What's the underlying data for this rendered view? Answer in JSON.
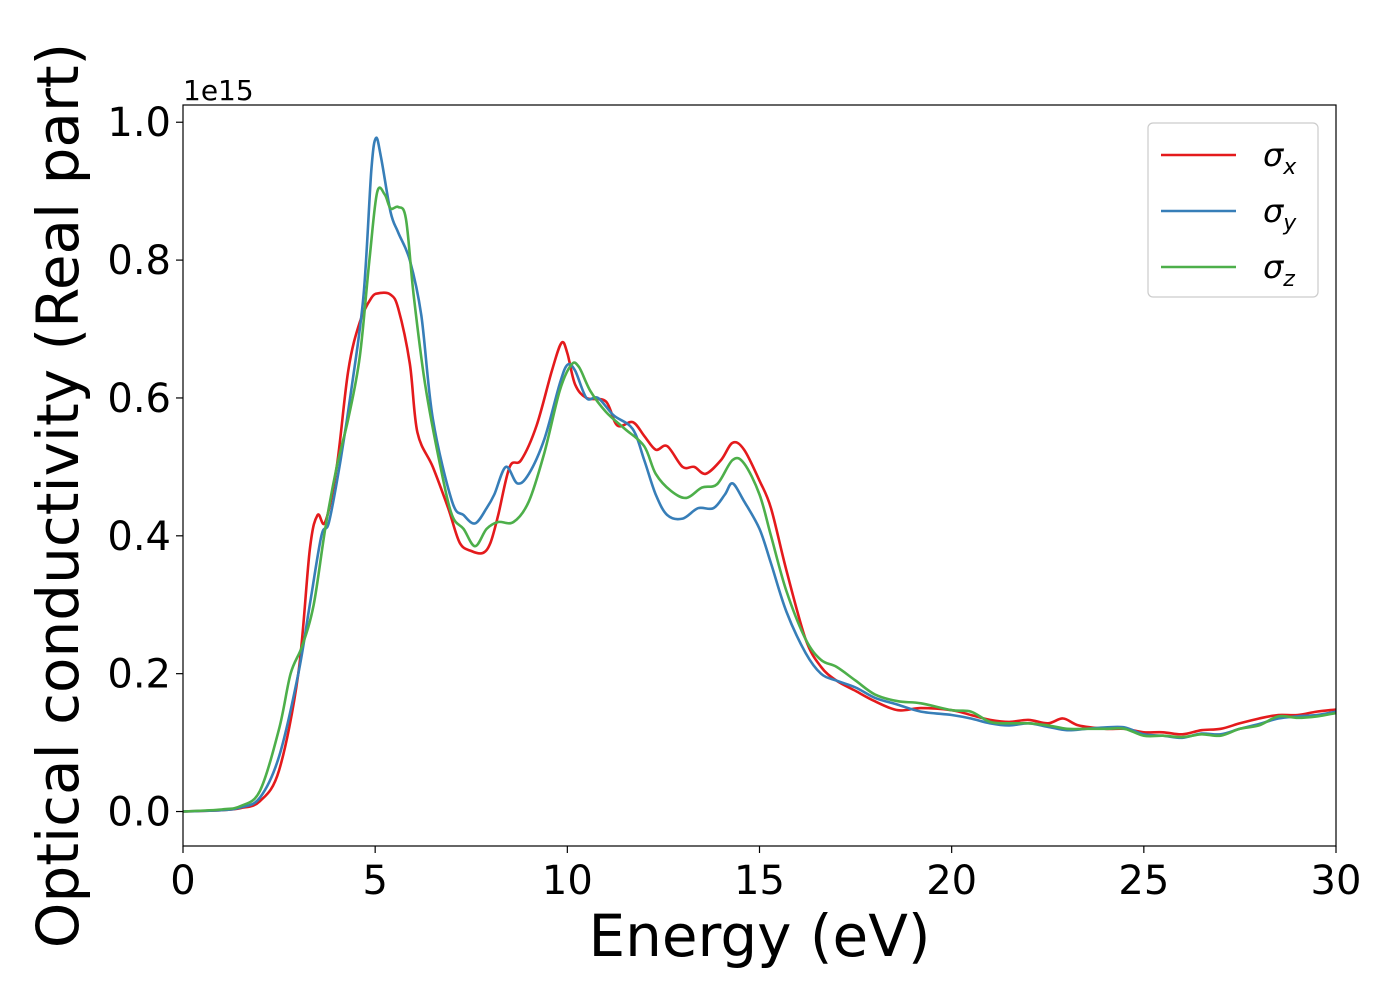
{
  "chart_data": {
    "type": "line",
    "xlabel": "Energy (eV)",
    "ylabel": "Optical conductivity (Real part)",
    "y_offset_label": "1e15",
    "xlim": [
      0,
      30
    ],
    "ylim": [
      -0.05,
      1.025
    ],
    "x_ticks": [
      0,
      5,
      10,
      15,
      20,
      25,
      30
    ],
    "x_tick_labels": [
      "0",
      "5",
      "10",
      "15",
      "20",
      "25",
      "30"
    ],
    "y_ticks": [
      0.0,
      0.2,
      0.4,
      0.6,
      0.8,
      1.0
    ],
    "y_tick_labels": [
      "0.0",
      "0.2",
      "0.4",
      "0.6",
      "0.8",
      "1.0"
    ],
    "grid": false,
    "legend_position": "top-right",
    "series": [
      {
        "name": "σx",
        "legend_base": "σ",
        "legend_sub": "x",
        "color": "#e41a1c",
        "points": [
          [
            0,
            0
          ],
          [
            1,
            0.002
          ],
          [
            1.5,
            0.005
          ],
          [
            2,
            0.015
          ],
          [
            2.5,
            0.06
          ],
          [
            3,
            0.2
          ],
          [
            3.3,
            0.38
          ],
          [
            3.5,
            0.43
          ],
          [
            3.7,
            0.42
          ],
          [
            4,
            0.5
          ],
          [
            4.3,
            0.64
          ],
          [
            4.6,
            0.71
          ],
          [
            4.9,
            0.745
          ],
          [
            5.1,
            0.752
          ],
          [
            5.4,
            0.75
          ],
          [
            5.6,
            0.73
          ],
          [
            5.9,
            0.65
          ],
          [
            6.1,
            0.55
          ],
          [
            6.5,
            0.5
          ],
          [
            6.9,
            0.44
          ],
          [
            7.2,
            0.39
          ],
          [
            7.5,
            0.378
          ],
          [
            7.8,
            0.375
          ],
          [
            8,
            0.39
          ],
          [
            8.2,
            0.43
          ],
          [
            8.5,
            0.5
          ],
          [
            8.8,
            0.51
          ],
          [
            9.2,
            0.56
          ],
          [
            9.6,
            0.64
          ],
          [
            9.85,
            0.68
          ],
          [
            10,
            0.665
          ],
          [
            10.2,
            0.62
          ],
          [
            10.5,
            0.6
          ],
          [
            11,
            0.595
          ],
          [
            11.3,
            0.56
          ],
          [
            11.7,
            0.565
          ],
          [
            12,
            0.545
          ],
          [
            12.3,
            0.525
          ],
          [
            12.6,
            0.53
          ],
          [
            13,
            0.5
          ],
          [
            13.3,
            0.5
          ],
          [
            13.6,
            0.49
          ],
          [
            14,
            0.51
          ],
          [
            14.3,
            0.535
          ],
          [
            14.6,
            0.525
          ],
          [
            15,
            0.48
          ],
          [
            15.3,
            0.44
          ],
          [
            15.7,
            0.35
          ],
          [
            16.2,
            0.25
          ],
          [
            16.6,
            0.21
          ],
          [
            17,
            0.19
          ],
          [
            17.5,
            0.175
          ],
          [
            18,
            0.16
          ],
          [
            18.6,
            0.147
          ],
          [
            19.2,
            0.15
          ],
          [
            20,
            0.147
          ],
          [
            20.5,
            0.14
          ],
          [
            21,
            0.133
          ],
          [
            21.5,
            0.13
          ],
          [
            22,
            0.133
          ],
          [
            22.5,
            0.128
          ],
          [
            22.9,
            0.135
          ],
          [
            23.3,
            0.125
          ],
          [
            24,
            0.12
          ],
          [
            24.5,
            0.12
          ],
          [
            25,
            0.115
          ],
          [
            25.5,
            0.115
          ],
          [
            26,
            0.112
          ],
          [
            26.5,
            0.118
          ],
          [
            27,
            0.12
          ],
          [
            27.5,
            0.128
          ],
          [
            28,
            0.135
          ],
          [
            28.5,
            0.14
          ],
          [
            29,
            0.14
          ],
          [
            29.5,
            0.145
          ],
          [
            30,
            0.148
          ]
        ]
      },
      {
        "name": "σy",
        "legend_base": "σ",
        "legend_sub": "y",
        "color": "#377eb8",
        "points": [
          [
            0,
            0
          ],
          [
            1,
            0.002
          ],
          [
            1.5,
            0.006
          ],
          [
            2,
            0.02
          ],
          [
            2.5,
            0.08
          ],
          [
            3,
            0.2
          ],
          [
            3.3,
            0.3
          ],
          [
            3.6,
            0.4
          ],
          [
            3.8,
            0.42
          ],
          [
            4.1,
            0.51
          ],
          [
            4.4,
            0.62
          ],
          [
            4.7,
            0.75
          ],
          [
            4.9,
            0.93
          ],
          [
            5.02,
            0.977
          ],
          [
            5.15,
            0.95
          ],
          [
            5.4,
            0.87
          ],
          [
            5.6,
            0.84
          ],
          [
            5.9,
            0.8
          ],
          [
            6.2,
            0.72
          ],
          [
            6.5,
            0.57
          ],
          [
            7,
            0.45
          ],
          [
            7.3,
            0.43
          ],
          [
            7.6,
            0.418
          ],
          [
            7.9,
            0.44
          ],
          [
            8.1,
            0.46
          ],
          [
            8.4,
            0.5
          ],
          [
            8.7,
            0.476
          ],
          [
            9,
            0.49
          ],
          [
            9.4,
            0.54
          ],
          [
            9.8,
            0.62
          ],
          [
            10,
            0.648
          ],
          [
            10.2,
            0.64
          ],
          [
            10.5,
            0.6
          ],
          [
            10.8,
            0.6
          ],
          [
            11.2,
            0.575
          ],
          [
            11.7,
            0.555
          ],
          [
            12,
            0.51
          ],
          [
            12.3,
            0.46
          ],
          [
            12.6,
            0.43
          ],
          [
            13,
            0.425
          ],
          [
            13.4,
            0.44
          ],
          [
            13.8,
            0.44
          ],
          [
            14.1,
            0.46
          ],
          [
            14.3,
            0.476
          ],
          [
            14.6,
            0.45
          ],
          [
            15,
            0.41
          ],
          [
            15.3,
            0.36
          ],
          [
            15.7,
            0.29
          ],
          [
            16.2,
            0.23
          ],
          [
            16.6,
            0.2
          ],
          [
            17,
            0.19
          ],
          [
            17.5,
            0.18
          ],
          [
            18,
            0.165
          ],
          [
            18.6,
            0.155
          ],
          [
            19.2,
            0.145
          ],
          [
            20,
            0.14
          ],
          [
            20.5,
            0.135
          ],
          [
            21,
            0.128
          ],
          [
            21.5,
            0.125
          ],
          [
            22,
            0.128
          ],
          [
            22.5,
            0.123
          ],
          [
            23,
            0.118
          ],
          [
            23.5,
            0.12
          ],
          [
            24,
            0.122
          ],
          [
            24.5,
            0.122
          ],
          [
            25,
            0.112
          ],
          [
            25.5,
            0.11
          ],
          [
            26,
            0.107
          ],
          [
            26.5,
            0.113
          ],
          [
            27,
            0.112
          ],
          [
            27.5,
            0.12
          ],
          [
            28,
            0.127
          ],
          [
            28.5,
            0.135
          ],
          [
            29,
            0.138
          ],
          [
            29.5,
            0.14
          ],
          [
            30,
            0.145
          ]
        ]
      },
      {
        "name": "σz",
        "legend_base": "σ",
        "legend_sub": "z",
        "color": "#4daf4a",
        "points": [
          [
            0,
            0
          ],
          [
            1,
            0.003
          ],
          [
            1.5,
            0.008
          ],
          [
            2,
            0.03
          ],
          [
            2.5,
            0.12
          ],
          [
            2.8,
            0.2
          ],
          [
            3.1,
            0.24
          ],
          [
            3.4,
            0.3
          ],
          [
            3.7,
            0.41
          ],
          [
            4,
            0.5
          ],
          [
            4.3,
            0.57
          ],
          [
            4.6,
            0.66
          ],
          [
            4.85,
            0.8
          ],
          [
            5.05,
            0.898
          ],
          [
            5.25,
            0.895
          ],
          [
            5.4,
            0.875
          ],
          [
            5.6,
            0.877
          ],
          [
            5.8,
            0.86
          ],
          [
            6,
            0.75
          ],
          [
            6.3,
            0.62
          ],
          [
            6.7,
            0.5
          ],
          [
            7,
            0.43
          ],
          [
            7.3,
            0.41
          ],
          [
            7.6,
            0.385
          ],
          [
            7.9,
            0.41
          ],
          [
            8.2,
            0.42
          ],
          [
            8.6,
            0.42
          ],
          [
            9,
            0.45
          ],
          [
            9.4,
            0.52
          ],
          [
            9.8,
            0.61
          ],
          [
            10.1,
            0.648
          ],
          [
            10.3,
            0.645
          ],
          [
            10.6,
            0.61
          ],
          [
            11,
            0.58
          ],
          [
            11.5,
            0.555
          ],
          [
            12,
            0.53
          ],
          [
            12.3,
            0.49
          ],
          [
            12.7,
            0.465
          ],
          [
            13.1,
            0.455
          ],
          [
            13.5,
            0.47
          ],
          [
            13.9,
            0.475
          ],
          [
            14.3,
            0.51
          ],
          [
            14.6,
            0.505
          ],
          [
            15,
            0.46
          ],
          [
            15.3,
            0.4
          ],
          [
            15.7,
            0.32
          ],
          [
            16.2,
            0.25
          ],
          [
            16.6,
            0.22
          ],
          [
            17,
            0.21
          ],
          [
            17.5,
            0.19
          ],
          [
            18,
            0.17
          ],
          [
            18.6,
            0.16
          ],
          [
            19.2,
            0.157
          ],
          [
            20,
            0.147
          ],
          [
            20.5,
            0.145
          ],
          [
            21,
            0.13
          ],
          [
            21.5,
            0.128
          ],
          [
            22,
            0.128
          ],
          [
            22.5,
            0.125
          ],
          [
            23,
            0.12
          ],
          [
            23.5,
            0.12
          ],
          [
            24,
            0.12
          ],
          [
            24.5,
            0.12
          ],
          [
            25,
            0.11
          ],
          [
            25.5,
            0.11
          ],
          [
            26,
            0.108
          ],
          [
            26.5,
            0.112
          ],
          [
            27,
            0.11
          ],
          [
            27.5,
            0.12
          ],
          [
            28,
            0.125
          ],
          [
            28.5,
            0.138
          ],
          [
            29,
            0.136
          ],
          [
            29.5,
            0.138
          ],
          [
            30,
            0.143
          ]
        ]
      }
    ]
  }
}
